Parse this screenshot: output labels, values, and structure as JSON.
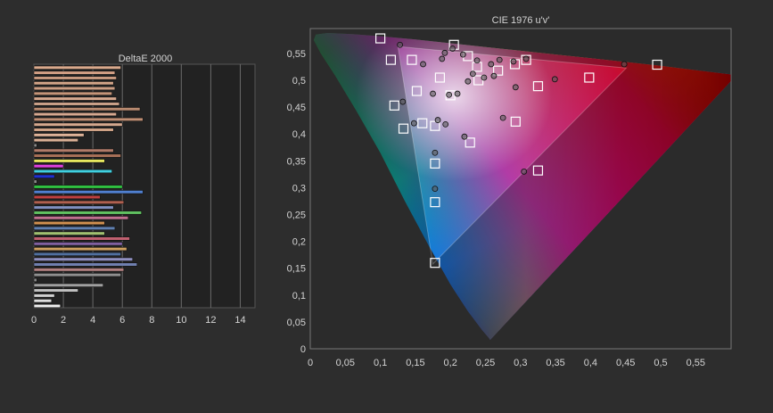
{
  "chart_data": [
    {
      "type": "bar",
      "orientation": "horizontal",
      "title": "DeltaE 2000",
      "xlabel": "",
      "ylabel": "",
      "xlim": [
        0,
        15
      ],
      "xticks": [
        "0",
        "2",
        "4",
        "6",
        "8",
        "10",
        "12",
        "14"
      ],
      "grid": true,
      "bars": [
        {
          "value": 5.9,
          "color": "#d9a98c"
        },
        {
          "value": 5.5,
          "color": "#d4a086"
        },
        {
          "value": 5.6,
          "color": "#c99a80"
        },
        {
          "value": 5.4,
          "color": "#d2a488"
        },
        {
          "value": 5.5,
          "color": "#cc9e84"
        },
        {
          "value": 5.3,
          "color": "#c49478"
        },
        {
          "value": 5.6,
          "color": "#d8aa90"
        },
        {
          "value": 5.8,
          "color": "#caa088"
        },
        {
          "value": 7.2,
          "color": "#b88a70"
        },
        {
          "value": 5.6,
          "color": "#d6a890"
        },
        {
          "value": 7.4,
          "color": "#c08e74"
        },
        {
          "value": 6.0,
          "color": "#d4a88e"
        },
        {
          "value": 5.4,
          "color": "#cfa286"
        },
        {
          "value": 3.4,
          "color": "#e0b49a"
        },
        {
          "value": 3.0,
          "color": "#dbb096"
        },
        {
          "value": 0.2,
          "color": "#888888"
        },
        {
          "value": 5.4,
          "color": "#b07a68"
        },
        {
          "value": 5.9,
          "color": "#a87058"
        },
        {
          "value": 4.8,
          "color": "#e8e860"
        },
        {
          "value": 2.0,
          "color": "#e040e0"
        },
        {
          "value": 5.3,
          "color": "#40d0e0"
        },
        {
          "value": 1.4,
          "color": "#2030d0"
        },
        {
          "value": 0.2,
          "color": "#888888"
        },
        {
          "value": 6.0,
          "color": "#30c040"
        },
        {
          "value": 7.4,
          "color": "#5080d0"
        },
        {
          "value": 4.5,
          "color": "#c04040"
        },
        {
          "value": 6.1,
          "color": "#b06050"
        },
        {
          "value": 5.4,
          "color": "#8090c0"
        },
        {
          "value": 7.3,
          "color": "#60c060"
        },
        {
          "value": 6.4,
          "color": "#c07090"
        },
        {
          "value": 4.8,
          "color": "#d09050"
        },
        {
          "value": 5.5,
          "color": "#6080b0"
        },
        {
          "value": 4.8,
          "color": "#a0c070"
        },
        {
          "value": 6.5,
          "color": "#c06070"
        },
        {
          "value": 6.0,
          "color": "#8060a0"
        },
        {
          "value": 6.3,
          "color": "#d0a060"
        },
        {
          "value": 5.9,
          "color": "#5070a0"
        },
        {
          "value": 6.7,
          "color": "#9090c0"
        },
        {
          "value": 7.0,
          "color": "#7080b0"
        },
        {
          "value": 6.1,
          "color": "#b08080"
        },
        {
          "value": 5.9,
          "color": "#909090"
        },
        {
          "value": 0.2,
          "color": "#888888"
        },
        {
          "value": 4.7,
          "color": "#a0a0a0"
        },
        {
          "value": 3.0,
          "color": "#c0c0c0"
        },
        {
          "value": 1.4,
          "color": "#d0d0d0"
        },
        {
          "value": 1.2,
          "color": "#e0e0e0"
        },
        {
          "value": 1.8,
          "color": "#f0f0f0"
        }
      ]
    },
    {
      "type": "scatter",
      "title": "CIE 1976 u'v'",
      "xlim": [
        0,
        0.6
      ],
      "ylim": [
        0,
        0.6
      ],
      "xticks": [
        "0",
        "0,05",
        "0,1",
        "0,15",
        "0,2",
        "0,25",
        "0,3",
        "0,35",
        "0,4",
        "0,45",
        "0,5",
        "0,55"
      ],
      "yticks": [
        "0",
        "0,05",
        "0,1",
        "0,15",
        "0,2",
        "0,25",
        "0,3",
        "0,35",
        "0,4",
        "0,45",
        "0,5",
        "0,55"
      ],
      "gamut_triangle": [
        [
          0.451,
          0.523
        ],
        [
          0.125,
          0.563
        ],
        [
          0.175,
          0.158
        ]
      ],
      "targets": [
        [
          0.1,
          0.578
        ],
        [
          0.205,
          0.566
        ],
        [
          0.115,
          0.538
        ],
        [
          0.145,
          0.538
        ],
        [
          0.225,
          0.545
        ],
        [
          0.308,
          0.538
        ],
        [
          0.292,
          0.53
        ],
        [
          0.185,
          0.505
        ],
        [
          0.238,
          0.525
        ],
        [
          0.268,
          0.518
        ],
        [
          0.24,
          0.5
        ],
        [
          0.2,
          0.472
        ],
        [
          0.152,
          0.48
        ],
        [
          0.12,
          0.453
        ],
        [
          0.133,
          0.41
        ],
        [
          0.16,
          0.42
        ],
        [
          0.178,
          0.415
        ],
        [
          0.228,
          0.384
        ],
        [
          0.293,
          0.423
        ],
        [
          0.325,
          0.489
        ],
        [
          0.398,
          0.505
        ],
        [
          0.495,
          0.529
        ],
        [
          0.178,
          0.345
        ],
        [
          0.178,
          0.273
        ],
        [
          0.325,
          0.332
        ],
        [
          0.178,
          0.16
        ]
      ],
      "measurements": [
        [
          0.128,
          0.566
        ],
        [
          0.161,
          0.53
        ],
        [
          0.192,
          0.551
        ],
        [
          0.203,
          0.559
        ],
        [
          0.218,
          0.548
        ],
        [
          0.238,
          0.537
        ],
        [
          0.258,
          0.53
        ],
        [
          0.27,
          0.538
        ],
        [
          0.29,
          0.535
        ],
        [
          0.21,
          0.475
        ],
        [
          0.198,
          0.473
        ],
        [
          0.225,
          0.498
        ],
        [
          0.248,
          0.505
        ],
        [
          0.262,
          0.508
        ],
        [
          0.232,
          0.512
        ],
        [
          0.308,
          0.54
        ],
        [
          0.448,
          0.53
        ],
        [
          0.349,
          0.502
        ],
        [
          0.293,
          0.487
        ],
        [
          0.148,
          0.42
        ],
        [
          0.182,
          0.426
        ],
        [
          0.193,
          0.418
        ],
        [
          0.22,
          0.395
        ],
        [
          0.178,
          0.365
        ],
        [
          0.275,
          0.43
        ],
        [
          0.175,
          0.475
        ],
        [
          0.188,
          0.54
        ],
        [
          0.178,
          0.298
        ],
        [
          0.305,
          0.33
        ],
        [
          0.132,
          0.46
        ]
      ]
    }
  ]
}
